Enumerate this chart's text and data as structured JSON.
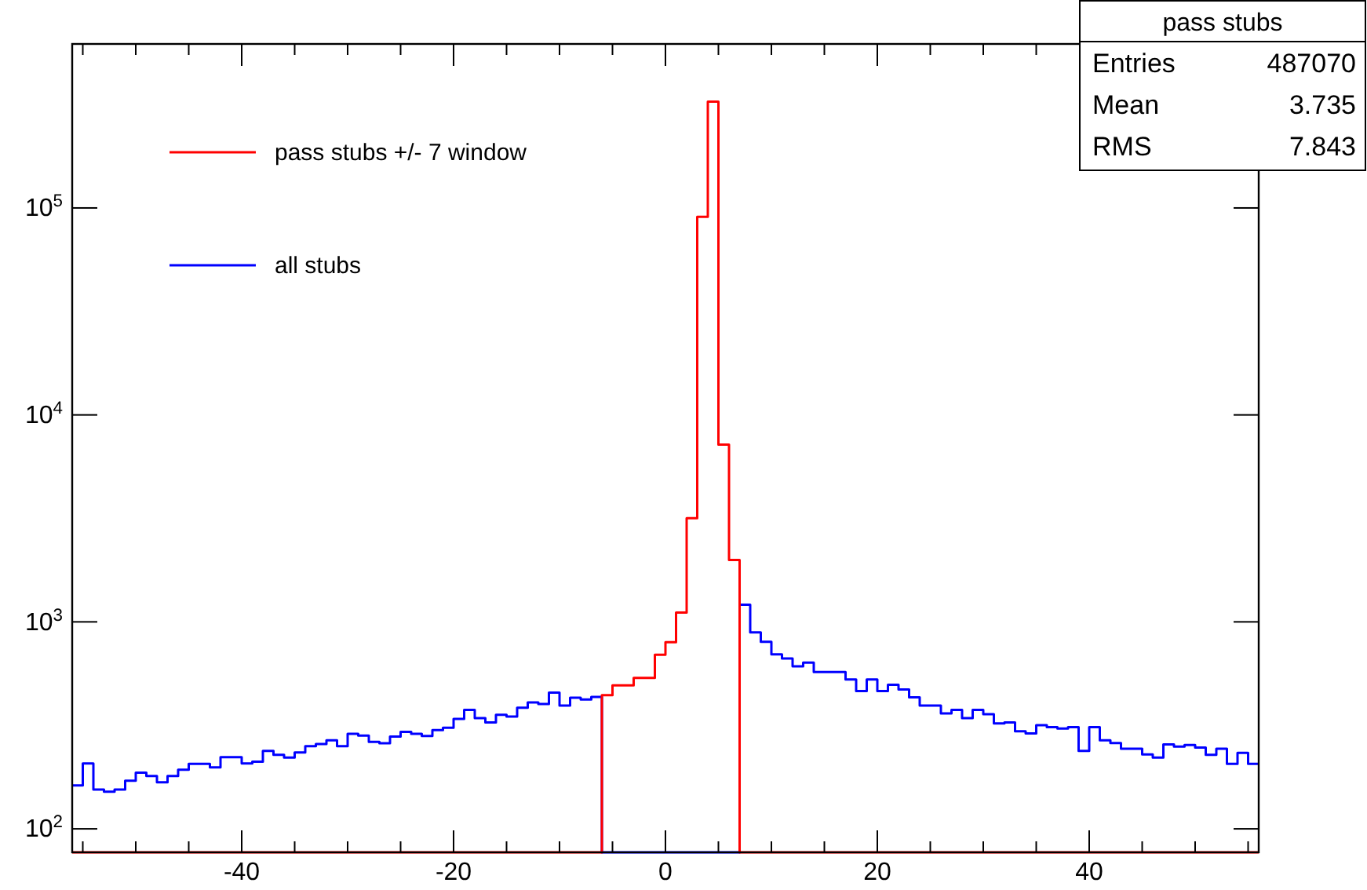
{
  "chart_data": {
    "type": "histogram",
    "bins": [
      -56,
      -55,
      -54,
      -53,
      -52,
      -51,
      -50,
      -49,
      -48,
      -47,
      -46,
      -45,
      -44,
      -43,
      -42,
      -41,
      -40,
      -39,
      -38,
      -37,
      -36,
      -35,
      -34,
      -33,
      -32,
      -31,
      -30,
      -29,
      -28,
      -27,
      -26,
      -25,
      -24,
      -23,
      -22,
      -21,
      -20,
      -19,
      -18,
      -17,
      -16,
      -15,
      -14,
      -13,
      -12,
      -11,
      -10,
      -9,
      -8,
      -7,
      -6,
      -5,
      -4,
      -3,
      -2,
      -1,
      0,
      1,
      2,
      3,
      4,
      5,
      6,
      7,
      8,
      9,
      10,
      11,
      12,
      13,
      14,
      15,
      16,
      17,
      18,
      19,
      20,
      21,
      22,
      23,
      24,
      25,
      26,
      27,
      28,
      29,
      30,
      31,
      32,
      33,
      34,
      35,
      36,
      37,
      38,
      39,
      40,
      41,
      42,
      43,
      44,
      45,
      46,
      47,
      48,
      49,
      50,
      51,
      52,
      53,
      54,
      55,
      56
    ],
    "series": [
      {
        "name": "pass stubs +/- 7 window",
        "color": "#ff0000",
        "values": [
          null,
          null,
          null,
          null,
          null,
          null,
          null,
          null,
          null,
          null,
          null,
          null,
          null,
          null,
          null,
          null,
          null,
          null,
          null,
          null,
          null,
          null,
          null,
          null,
          null,
          null,
          null,
          null,
          null,
          null,
          null,
          null,
          null,
          null,
          null,
          null,
          null,
          null,
          null,
          null,
          null,
          null,
          null,
          null,
          null,
          null,
          null,
          null,
          null,
          null,
          442,
          494,
          494,
          536,
          536,
          693,
          797,
          1110,
          3170,
          90600,
          326000,
          7180,
          1990,
          null,
          null,
          null,
          null,
          null,
          null,
          null,
          null,
          null,
          null,
          null,
          null,
          null,
          null,
          null,
          null,
          null,
          null,
          null,
          null,
          null,
          null,
          null,
          null,
          null,
          null,
          null,
          null,
          null,
          null,
          null,
          null,
          null,
          null,
          null,
          null,
          null,
          null,
          null,
          null,
          null,
          null,
          null,
          null,
          null,
          null,
          null,
          null,
          null
        ]
      },
      {
        "name": "all stubs",
        "color": "#0000ff",
        "values": [
          162,
          207,
          155,
          151,
          155,
          171,
          187,
          180,
          168,
          180,
          193,
          206,
          206,
          198,
          222,
          222,
          207,
          211,
          238,
          228,
          221,
          234,
          251,
          257,
          268,
          251,
          288,
          282,
          263,
          259,
          279,
          294,
          288,
          281,
          300,
          308,
          340,
          376,
          343,
          327,
          356,
          349,
          385,
          408,
          401,
          455,
          394,
          430,
          422,
          434,
          null,
          null,
          null,
          null,
          null,
          null,
          null,
          null,
          null,
          null,
          null,
          null,
          null,
          1210,
          890,
          801,
          697,
          665,
          610,
          635,
          572,
          572,
          572,
          527,
          463,
          527,
          463,
          497,
          471,
          432,
          394,
          394,
          361,
          376,
          343,
          376,
          358,
          323,
          327,
          296,
          289,
          317,
          310,
          305,
          310,
          238,
          310,
          268,
          260,
          244,
          244,
          229,
          221,
          256,
          250,
          254,
          247,
          228,
          244,
          206,
          233,
          206
        ]
      }
    ],
    "xlim": [
      -56,
      56
    ],
    "xticks": [
      {
        "value": -55,
        "label": null
      },
      {
        "value": -50,
        "label": null
      },
      {
        "value": -45,
        "label": null
      },
      -40,
      {
        "value": -35,
        "label": null
      },
      {
        "value": -30,
        "label": null
      },
      {
        "value": -25,
        "label": null
      },
      -20,
      {
        "value": -15,
        "label": null
      },
      {
        "value": -10,
        "label": null
      },
      {
        "value": -5,
        "label": null
      },
      0,
      {
        "value": 5,
        "label": null
      },
      {
        "value": 10,
        "label": null
      },
      {
        "value": 15,
        "label": null
      },
      20,
      {
        "value": 25,
        "label": null
      },
      {
        "value": 30,
        "label": null
      },
      {
        "value": 35,
        "label": null
      },
      40,
      {
        "value": 45,
        "label": null
      },
      {
        "value": 50,
        "label": null
      },
      {
        "value": 55,
        "label": null
      }
    ],
    "ylim": [
      77,
      620000
    ],
    "log": true,
    "yticks": [
      {
        "value": 100,
        "label": "10$^{2}$"
      },
      {
        "value": 1000,
        "label": "10$^{3}$"
      },
      {
        "value": 10000,
        "label": "10$^{4}$"
      },
      {
        "value": 100000,
        "label": "10$^{5}$"
      }
    ],
    "grid": false,
    "legend": "top left",
    "annotations": [
      "pass stubs",
      "Entries",
      "487070",
      "Mean",
      "3.735",
      "RMS",
      "7.843"
    ]
  }
}
